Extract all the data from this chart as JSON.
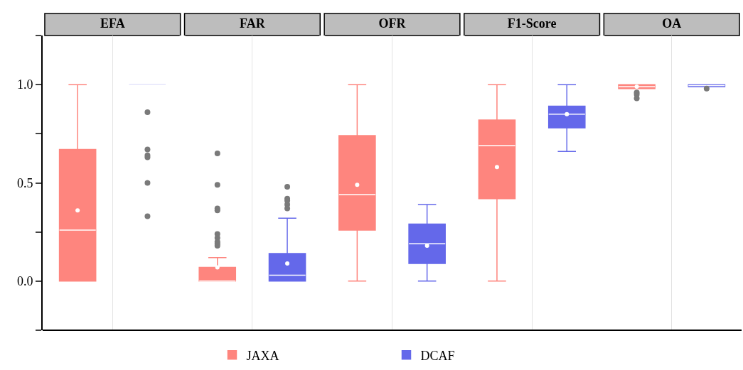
{
  "chart_data": {
    "type": "box",
    "categories": [
      "EFA",
      "FAR",
      "OFR",
      "F1-Score",
      "OA"
    ],
    "ylim": [
      -0.25,
      1.25
    ],
    "yticks": [
      {
        "value": -0.25,
        "label": null
      },
      {
        "value": 0,
        "label": "0.0"
      },
      {
        "value": 0.25,
        "label": null
      },
      {
        "value": 0.5,
        "label": "0.5"
      },
      {
        "value": 0.75,
        "label": null
      },
      {
        "value": 1,
        "label": "1.0"
      },
      {
        "value": 1.25,
        "label": null
      }
    ],
    "legend": "bottom",
    "grid": "x",
    "series": [
      {
        "name": "JAXA",
        "color": "#fe857e",
        "boxes": [
          {
            "low": 0.0,
            "q1": 0.0,
            "median": 0.26,
            "q3": 0.67,
            "high": 1.0,
            "mean": 0.36
          },
          {
            "low": 0.0,
            "q1": 0.0,
            "median": 0.0,
            "q3": 0.07,
            "high": 0.12,
            "mean": 0.07,
            "outliers": [
              0.65,
              0.49,
              0.37,
              0.36,
              0.24,
              0.22,
              0.2,
              0.19,
              0.18
            ]
          },
          {
            "low": 0.0,
            "q1": 0.26,
            "median": 0.44,
            "q3": 0.74,
            "high": 1.0,
            "mean": 0.49
          },
          {
            "low": 0.0,
            "q1": 0.42,
            "median": 0.69,
            "q3": 0.82,
            "high": 1.0,
            "mean": 0.58
          },
          {
            "low": 0.98,
            "q1": 0.98,
            "median": 0.99,
            "q3": 1.0,
            "high": 1.0,
            "mean": 0.99,
            "outliers": [
              0.96,
              0.95,
              0.93
            ]
          }
        ]
      },
      {
        "name": "DCAF",
        "color": "#6468ea",
        "boxes": [
          {
            "low": 1.0,
            "q1": 1.0,
            "median": 1.0,
            "q3": 1.0,
            "high": 1.0,
            "outliers": [
              0.86,
              0.67,
              0.64,
              0.63,
              0.5,
              0.33
            ]
          },
          {
            "low": 0.0,
            "q1": 0.0,
            "median": 0.03,
            "q3": 0.14,
            "high": 0.32,
            "mean": 0.09,
            "outliers": [
              0.48,
              0.42,
              0.41,
              0.39,
              0.37
            ]
          },
          {
            "low": 0.0,
            "q1": 0.09,
            "median": 0.19,
            "q3": 0.29,
            "high": 0.39,
            "mean": 0.18
          },
          {
            "low": 0.66,
            "q1": 0.78,
            "median": 0.85,
            "q3": 0.89,
            "high": 1.0,
            "mean": 0.85
          },
          {
            "low": 0.99,
            "q1": 0.99,
            "median": 0.995,
            "q3": 1.0,
            "high": 1.0,
            "outliers": [
              0.98
            ]
          }
        ]
      }
    ]
  }
}
